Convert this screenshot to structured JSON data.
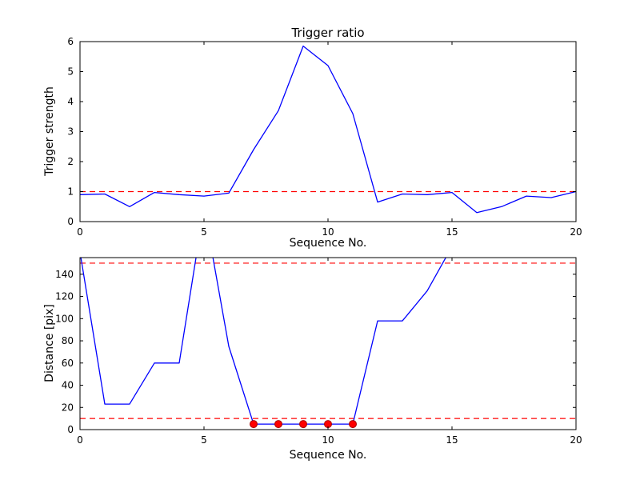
{
  "figure": {
    "background": "#ffffff",
    "axes_color": "#000000",
    "line_color": "#0000ff",
    "threshold_color": "#ff0000"
  },
  "chart_data": [
    {
      "type": "line",
      "title": "Trigger ratio",
      "xlabel": "Sequence No.",
      "ylabel": "Trigger strength",
      "xlim": [
        0,
        20
      ],
      "ylim": [
        0,
        6
      ],
      "xticks": [
        0,
        5,
        10,
        15,
        20
      ],
      "yticks": [
        0,
        1,
        2,
        3,
        4,
        5,
        6
      ],
      "grid": false,
      "legend": null,
      "x": [
        0,
        1,
        2,
        3,
        4,
        5,
        6,
        7,
        8,
        9,
        10,
        11,
        12,
        13,
        14,
        15,
        16,
        17,
        18,
        19,
        20
      ],
      "series": [
        {
          "name": "trigger-strength",
          "color": "#0000ff",
          "values": [
            0.9,
            0.92,
            0.5,
            0.97,
            0.9,
            0.85,
            0.95,
            2.4,
            3.7,
            5.85,
            5.2,
            3.6,
            0.65,
            0.92,
            0.9,
            0.97,
            0.3,
            0.5,
            0.85,
            0.8,
            1.0
          ]
        }
      ],
      "threshold_lines": [
        {
          "y": 1,
          "color": "#ff0000",
          "style": "dashed"
        }
      ]
    },
    {
      "type": "line",
      "title": "",
      "xlabel": "Sequence No.",
      "ylabel": "Distance [pix]",
      "xlim": [
        0,
        20
      ],
      "ylim": [
        0,
        155
      ],
      "xticks": [
        0,
        5,
        10,
        15,
        20
      ],
      "yticks": [
        0,
        20,
        40,
        60,
        80,
        100,
        120,
        140
      ],
      "grid": false,
      "legend": null,
      "x": [
        0,
        1,
        2,
        3,
        4,
        5,
        6,
        7,
        8,
        9,
        10,
        11,
        12,
        13,
        14,
        15,
        16,
        17,
        18,
        19,
        20
      ],
      "series": [
        {
          "name": "distance",
          "color": "#0000ff",
          "values": [
            160,
            23,
            23,
            60,
            60,
            200,
            75,
            5,
            5,
            5,
            5,
            5,
            98,
            98,
            125,
            165,
            null,
            null,
            null,
            null,
            null
          ]
        }
      ],
      "threshold_lines": [
        {
          "y": 150,
          "color": "#ff0000",
          "style": "dashed"
        },
        {
          "y": 10,
          "color": "#ff0000",
          "style": "dashed"
        }
      ],
      "markers": {
        "shape": "circle",
        "x": [
          7,
          8,
          9,
          10,
          11
        ],
        "y": [
          5,
          5,
          5,
          5,
          5
        ],
        "face": "#ff0000",
        "edge": "#aa0000"
      }
    }
  ]
}
